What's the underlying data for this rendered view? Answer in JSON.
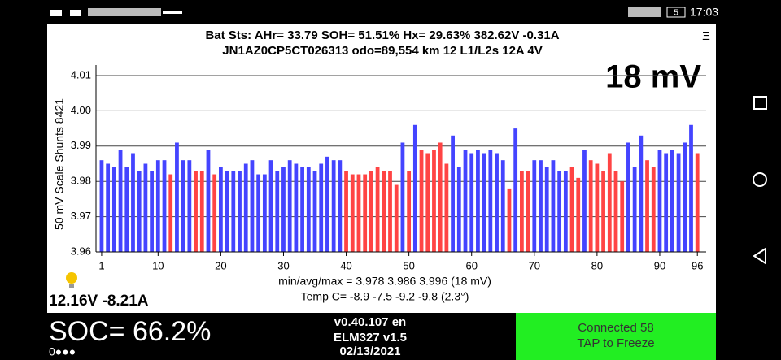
{
  "status_bar": {
    "battery": "5",
    "time": "17:03"
  },
  "header": {
    "line1": "Bat Sts:  AHr= 33.79  SOH= 51.51%   Hx= 29.63%   382.62V -0.31A",
    "line2": "JN1AZ0CP5CT026313 odo=89,554 km  12 L1/L2s  12A 4V",
    "menu": "Ξ",
    "spread": "18 mV"
  },
  "chart_data": {
    "type": "bar",
    "ylabel": "50 mV Scale   Shunts 8421",
    "grid": true,
    "x": [
      1,
      2,
      3,
      4,
      5,
      6,
      7,
      8,
      9,
      10,
      11,
      12,
      13,
      14,
      15,
      16,
      17,
      18,
      19,
      20,
      21,
      22,
      23,
      24,
      25,
      26,
      27,
      28,
      29,
      30,
      31,
      32,
      33,
      34,
      35,
      36,
      37,
      38,
      39,
      40,
      41,
      42,
      43,
      44,
      45,
      46,
      47,
      48,
      49,
      50,
      51,
      52,
      53,
      54,
      55,
      56,
      57,
      58,
      59,
      60,
      61,
      62,
      63,
      64,
      65,
      66,
      67,
      68,
      69,
      70,
      71,
      72,
      73,
      74,
      75,
      76,
      77,
      78,
      79,
      80,
      81,
      82,
      83,
      84,
      85,
      86,
      87,
      88,
      89,
      90,
      91,
      92,
      93,
      94,
      95,
      96
    ],
    "values": [
      3.986,
      3.985,
      3.984,
      3.989,
      3.984,
      3.988,
      3.983,
      3.985,
      3.983,
      3.986,
      3.986,
      3.982,
      3.991,
      3.986,
      3.986,
      3.983,
      3.983,
      3.989,
      3.982,
      3.984,
      3.983,
      3.983,
      3.983,
      3.985,
      3.986,
      3.982,
      3.982,
      3.986,
      3.983,
      3.984,
      3.986,
      3.985,
      3.984,
      3.984,
      3.983,
      3.985,
      3.987,
      3.986,
      3.986,
      3.983,
      3.982,
      3.982,
      3.982,
      3.983,
      3.984,
      3.983,
      3.983,
      3.979,
      3.991,
      3.983,
      3.996,
      3.989,
      3.988,
      3.989,
      3.991,
      3.985,
      3.993,
      3.984,
      3.989,
      3.988,
      3.989,
      3.988,
      3.989,
      3.988,
      3.986,
      3.978,
      3.995,
      3.983,
      3.983,
      3.986,
      3.986,
      3.984,
      3.986,
      3.983,
      3.983,
      3.984,
      3.981,
      3.989,
      3.986,
      3.985,
      3.983,
      3.988,
      3.983,
      3.98,
      3.991,
      3.984,
      3.993,
      3.986,
      3.984,
      3.989,
      3.988,
      3.989,
      3.988,
      3.991,
      3.996,
      3.988
    ],
    "colors": [
      "#44f",
      "#44f",
      "#44f",
      "#44f",
      "#44f",
      "#44f",
      "#44f",
      "#44f",
      "#44f",
      "#44f",
      "#44f",
      "#f44",
      "#44f",
      "#44f",
      "#44f",
      "#f44",
      "#f44",
      "#44f",
      "#f44",
      "#44f",
      "#44f",
      "#44f",
      "#44f",
      "#44f",
      "#44f",
      "#44f",
      "#44f",
      "#44f",
      "#44f",
      "#44f",
      "#44f",
      "#44f",
      "#44f",
      "#44f",
      "#44f",
      "#44f",
      "#44f",
      "#44f",
      "#44f",
      "#f44",
      "#f44",
      "#f44",
      "#f44",
      "#f44",
      "#f44",
      "#f44",
      "#f44",
      "#f44",
      "#44f",
      "#f44",
      "#44f",
      "#f44",
      "#f44",
      "#f44",
      "#f44",
      "#f44",
      "#44f",
      "#44f",
      "#44f",
      "#44f",
      "#44f",
      "#44f",
      "#44f",
      "#44f",
      "#44f",
      "#f44",
      "#44f",
      "#f44",
      "#f44",
      "#44f",
      "#44f",
      "#44f",
      "#44f",
      "#44f",
      "#44f",
      "#f44",
      "#f44",
      "#44f",
      "#f44",
      "#f44",
      "#f44",
      "#f44",
      "#f44",
      "#f44",
      "#44f",
      "#44f",
      "#44f",
      "#f44",
      "#f44",
      "#44f",
      "#44f",
      "#44f",
      "#44f",
      "#44f",
      "#44f",
      "#f44"
    ],
    "xlim": [
      0.1,
      97.4
    ],
    "xticks": [
      1,
      10,
      20,
      30,
      40,
      50,
      60,
      70,
      80,
      90,
      96
    ],
    "ylim": [
      3.96,
      4.013
    ],
    "yticks": [
      4.01,
      {
        "value": 4,
        "label": "4.00"
      },
      3.99,
      3.98,
      3.97,
      3.96
    ]
  },
  "stats": {
    "minavgmax": "min/avg/max = 3.978 3.986 3.996  (18 mV)",
    "temp": "Temp C= -8.9  -7.5  -9.2  -9.8  (2.3°)",
    "pack": "12.16V -8.21A"
  },
  "footer": {
    "soc": "SOC= 66.2%",
    "dots": "0●●●",
    "version": "v0.40.107 en",
    "elm": "ELM327 v1.5",
    "date": "02/13/2021",
    "connected": "Connected 58",
    "tap": "TAP to Freeze"
  }
}
